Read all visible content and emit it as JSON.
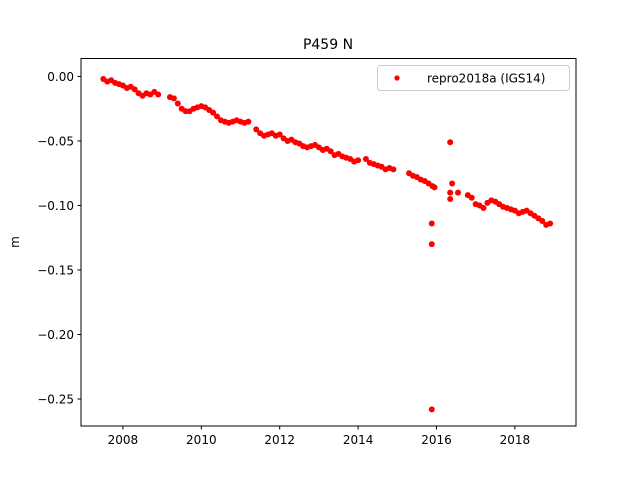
{
  "chart_data": {
    "type": "scatter",
    "title": "P459 N",
    "xlabel": "",
    "ylabel": "m",
    "xlim": [
      2006.93,
      2019.56
    ],
    "ylim": [
      -0.2709,
      0.0139
    ],
    "xticks": [
      2008,
      2010,
      2012,
      2014,
      2016,
      2018
    ],
    "xtick_labels": [
      "2008",
      "2010",
      "2012",
      "2014",
      "2016",
      "2018"
    ],
    "yticks": [
      0.0,
      -0.05,
      -0.1,
      -0.15,
      -0.2,
      -0.25
    ],
    "ytick_labels": [
      "0.00",
      "−0.05",
      "−0.10",
      "−0.15",
      "−0.20",
      "−0.25"
    ],
    "grid": false,
    "legend_position": "top-right",
    "series": [
      {
        "name": "repro2018a (IGS14)",
        "color": "#ff0000",
        "marker": "circle",
        "points": [
          [
            2007.5,
            -0.002
          ],
          [
            2007.6,
            -0.004
          ],
          [
            2007.7,
            -0.003
          ],
          [
            2007.8,
            -0.005
          ],
          [
            2007.9,
            -0.006
          ],
          [
            2008.0,
            -0.007
          ],
          [
            2008.1,
            -0.009
          ],
          [
            2008.2,
            -0.008
          ],
          [
            2008.3,
            -0.01
          ],
          [
            2008.4,
            -0.013
          ],
          [
            2008.5,
            -0.015
          ],
          [
            2008.6,
            -0.013
          ],
          [
            2008.7,
            -0.014
          ],
          [
            2008.8,
            -0.012
          ],
          [
            2008.9,
            -0.014
          ],
          [
            2009.2,
            -0.016
          ],
          [
            2009.3,
            -0.017
          ],
          [
            2009.4,
            -0.021
          ],
          [
            2009.5,
            -0.025
          ],
          [
            2009.6,
            -0.027
          ],
          [
            2009.7,
            -0.027
          ],
          [
            2009.8,
            -0.025
          ],
          [
            2009.9,
            -0.024
          ],
          [
            2010.0,
            -0.023
          ],
          [
            2010.1,
            -0.024
          ],
          [
            2010.2,
            -0.026
          ],
          [
            2010.3,
            -0.028
          ],
          [
            2010.4,
            -0.031
          ],
          [
            2010.5,
            -0.034
          ],
          [
            2010.6,
            -0.035
          ],
          [
            2010.7,
            -0.036
          ],
          [
            2010.8,
            -0.035
          ],
          [
            2010.9,
            -0.034
          ],
          [
            2011.0,
            -0.035
          ],
          [
            2011.1,
            -0.036
          ],
          [
            2011.2,
            -0.035
          ],
          [
            2011.4,
            -0.041
          ],
          [
            2011.5,
            -0.044
          ],
          [
            2011.6,
            -0.046
          ],
          [
            2011.7,
            -0.045
          ],
          [
            2011.8,
            -0.044
          ],
          [
            2011.9,
            -0.046
          ],
          [
            2012.0,
            -0.045
          ],
          [
            2012.1,
            -0.048
          ],
          [
            2012.2,
            -0.05
          ],
          [
            2012.3,
            -0.049
          ],
          [
            2012.4,
            -0.051
          ],
          [
            2012.5,
            -0.052
          ],
          [
            2012.6,
            -0.054
          ],
          [
            2012.7,
            -0.055
          ],
          [
            2012.8,
            -0.054
          ],
          [
            2012.9,
            -0.053
          ],
          [
            2013.0,
            -0.055
          ],
          [
            2013.1,
            -0.057
          ],
          [
            2013.2,
            -0.056
          ],
          [
            2013.3,
            -0.058
          ],
          [
            2013.4,
            -0.061
          ],
          [
            2013.5,
            -0.06
          ],
          [
            2013.6,
            -0.062
          ],
          [
            2013.7,
            -0.063
          ],
          [
            2013.8,
            -0.064
          ],
          [
            2013.9,
            -0.066
          ],
          [
            2014.0,
            -0.065
          ],
          [
            2014.2,
            -0.064
          ],
          [
            2014.3,
            -0.067
          ],
          [
            2014.4,
            -0.068
          ],
          [
            2014.5,
            -0.069
          ],
          [
            2014.6,
            -0.07
          ],
          [
            2014.7,
            -0.072
          ],
          [
            2014.8,
            -0.071
          ],
          [
            2014.9,
            -0.072
          ],
          [
            2015.3,
            -0.075
          ],
          [
            2015.4,
            -0.077
          ],
          [
            2015.5,
            -0.078
          ],
          [
            2015.6,
            -0.08
          ],
          [
            2015.7,
            -0.081
          ],
          [
            2015.8,
            -0.083
          ],
          [
            2015.9,
            -0.085
          ],
          [
            2015.95,
            -0.086
          ],
          [
            2015.88,
            -0.114
          ],
          [
            2015.88,
            -0.13
          ],
          [
            2015.88,
            -0.258
          ],
          [
            2016.35,
            -0.051
          ],
          [
            2016.4,
            -0.083
          ],
          [
            2016.35,
            -0.09
          ],
          [
            2016.35,
            -0.095
          ],
          [
            2016.55,
            -0.09
          ],
          [
            2016.8,
            -0.092
          ],
          [
            2016.9,
            -0.094
          ],
          [
            2017.0,
            -0.099
          ],
          [
            2017.1,
            -0.1
          ],
          [
            2017.2,
            -0.102
          ],
          [
            2017.3,
            -0.098
          ],
          [
            2017.4,
            -0.096
          ],
          [
            2017.5,
            -0.097
          ],
          [
            2017.6,
            -0.099
          ],
          [
            2017.7,
            -0.101
          ],
          [
            2017.8,
            -0.102
          ],
          [
            2017.9,
            -0.103
          ],
          [
            2018.0,
            -0.104
          ],
          [
            2018.1,
            -0.106
          ],
          [
            2018.2,
            -0.105
          ],
          [
            2018.3,
            -0.104
          ],
          [
            2018.4,
            -0.106
          ],
          [
            2018.5,
            -0.108
          ],
          [
            2018.6,
            -0.11
          ],
          [
            2018.7,
            -0.112
          ],
          [
            2018.8,
            -0.115
          ],
          [
            2018.9,
            -0.114
          ]
        ]
      }
    ]
  }
}
